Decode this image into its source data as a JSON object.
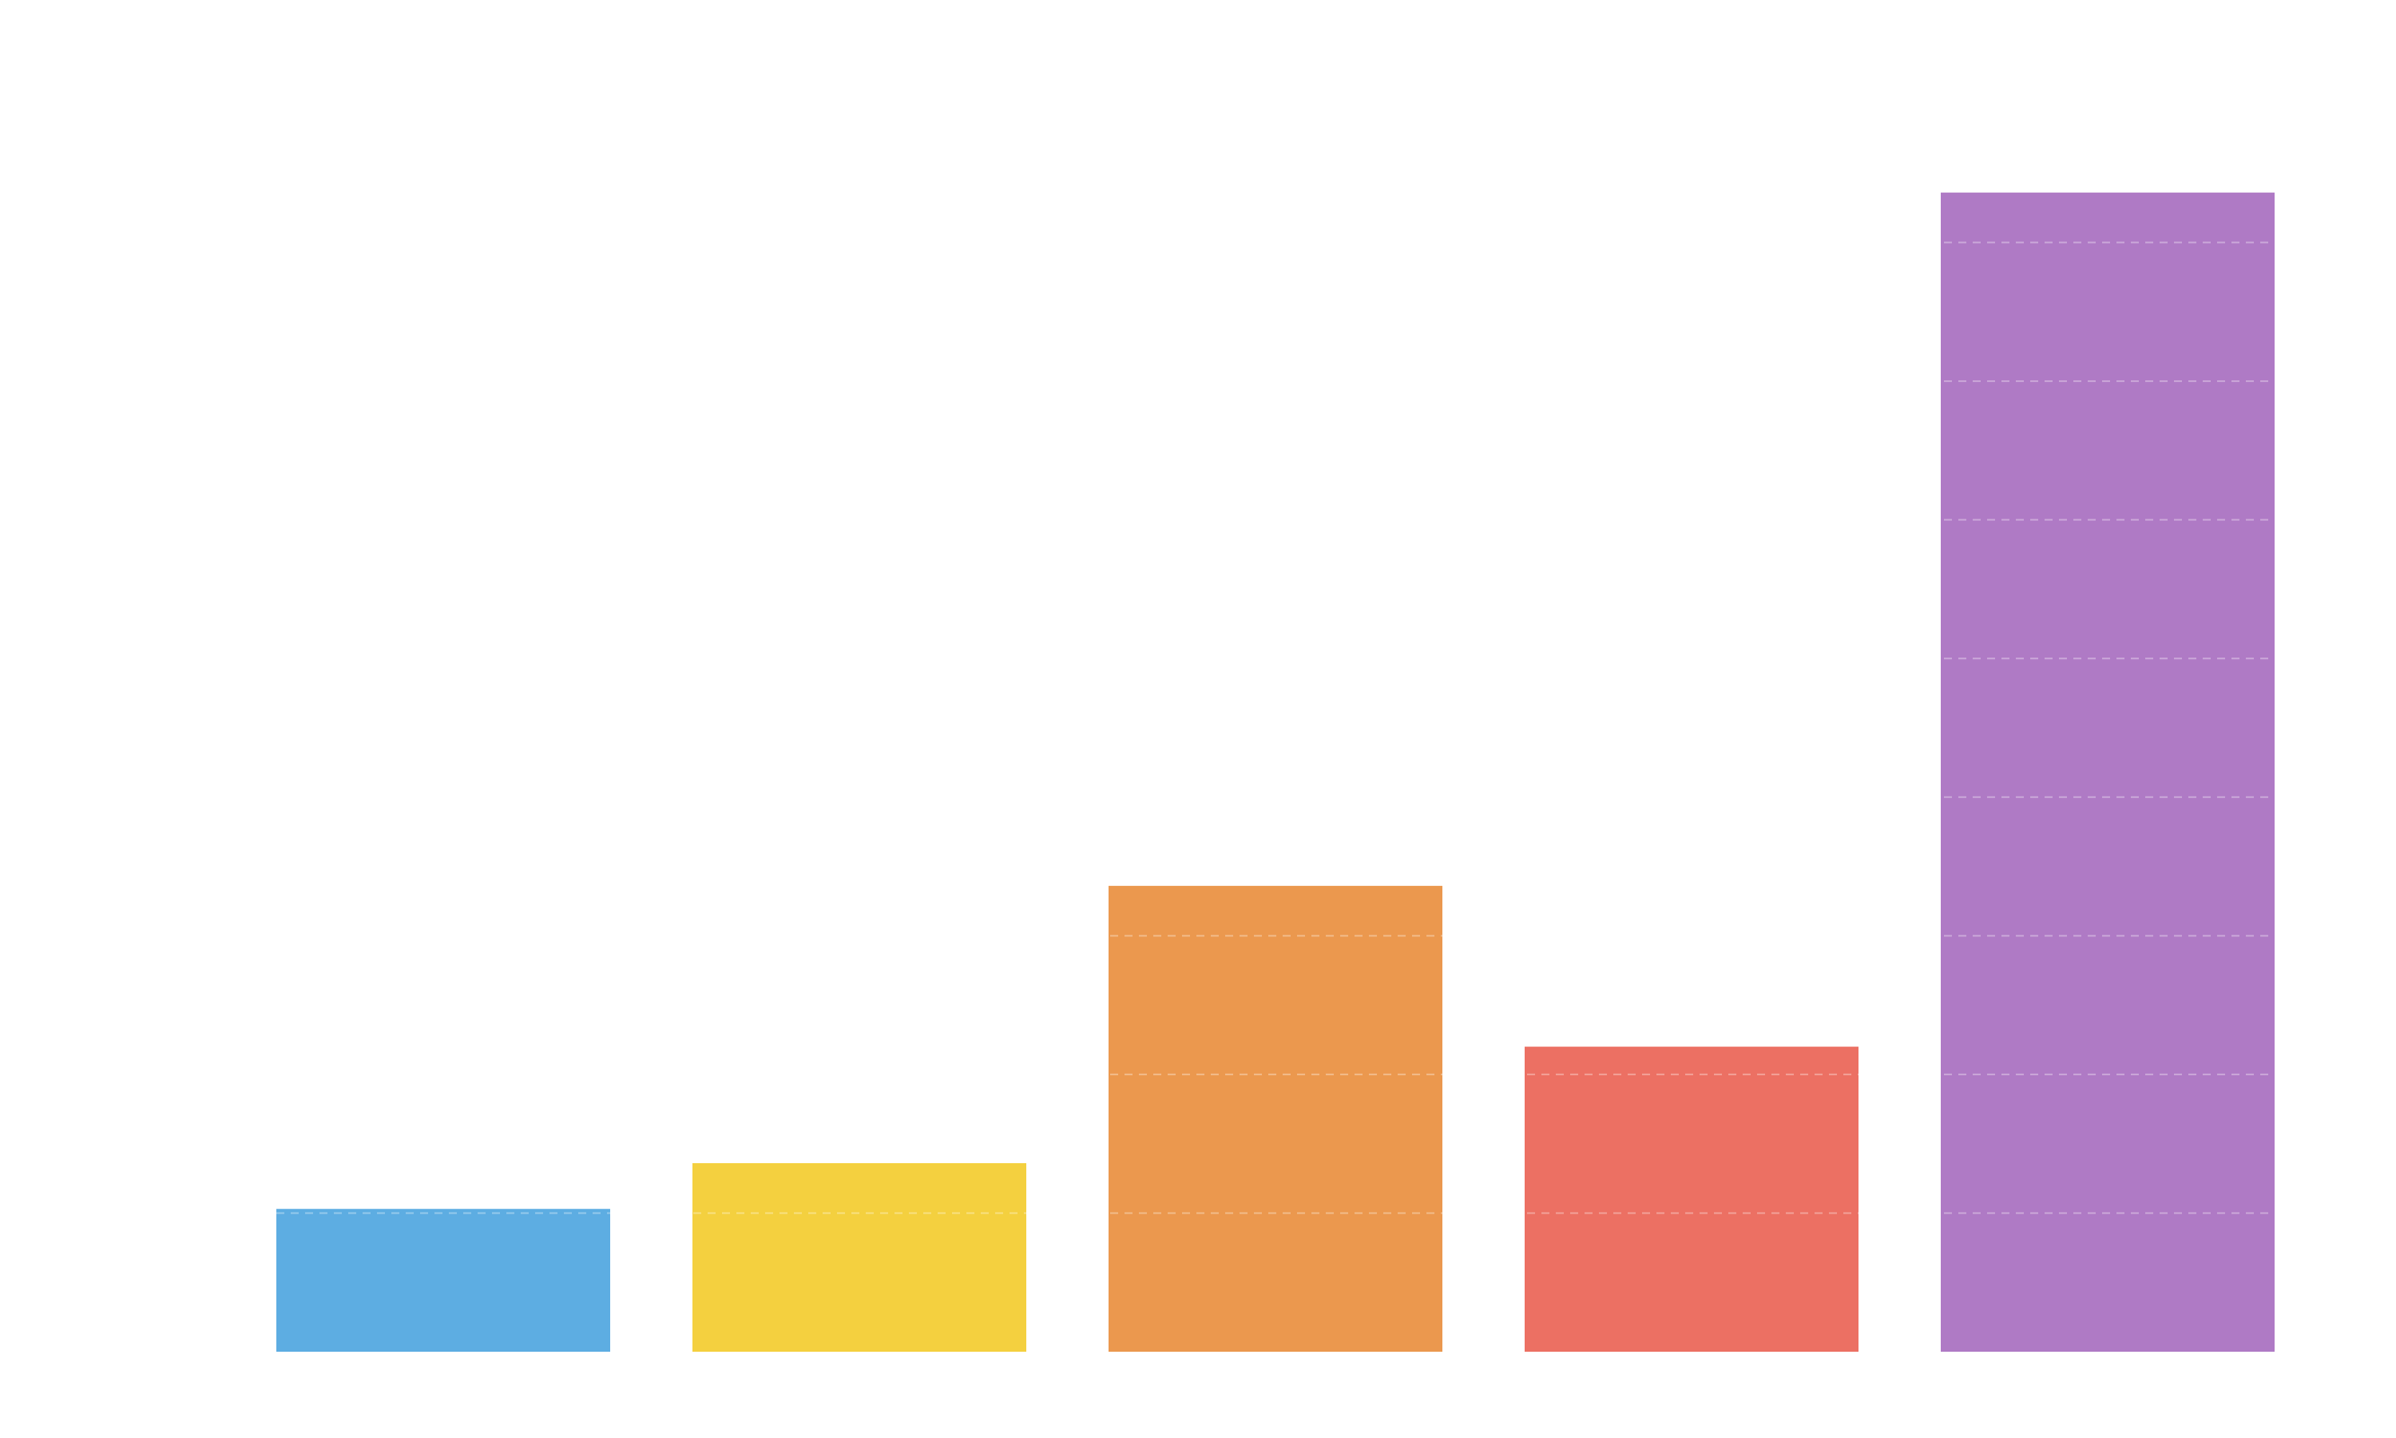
{
  "chart_data": {
    "type": "bar",
    "title": "",
    "xlabel": "",
    "ylabel": "",
    "categories": [
      "",
      "",
      "",
      "",
      ""
    ],
    "values": [
      1.03,
      1.36,
      3.36,
      2.2,
      8.36
    ],
    "colors": [
      "#5dade2",
      "#f4d03f",
      "#eb984e",
      "#ec7063",
      "#af7ac5"
    ],
    "ylim": [
      0,
      9
    ],
    "grid": true,
    "grid_style": "dashed",
    "legend": "none",
    "axes_visible": false
  }
}
